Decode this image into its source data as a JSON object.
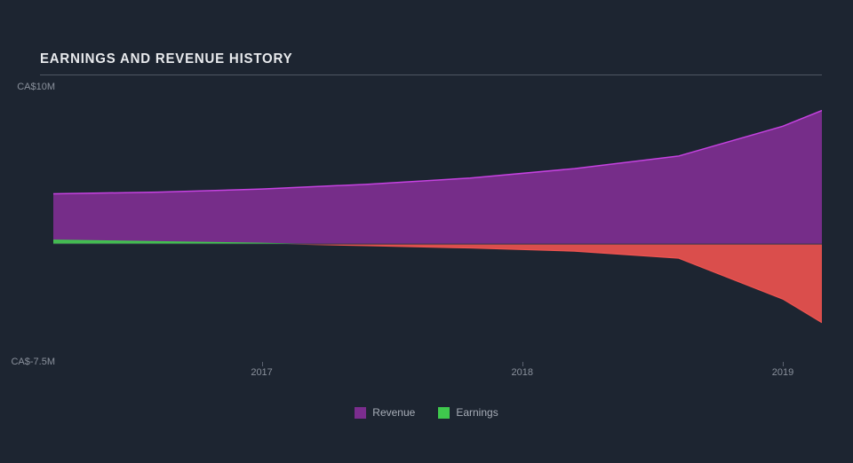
{
  "title": "EARNINGS AND REVENUE HISTORY",
  "chart": {
    "type": "area",
    "background_color": "#1d2531",
    "grid_color": "#5b6270",
    "axis_label_color": "#8a919c",
    "axis_label_fontsize": 11,
    "title_color": "#e8eaed",
    "title_fontsize": 15,
    "y_axis": {
      "min": -7.5,
      "max": 10,
      "ticks": [
        {
          "value": 10,
          "label": "CA$10M"
        },
        {
          "value": -7.5,
          "label": "CA$-7.5M"
        }
      ]
    },
    "x_axis": {
      "min": 2016.2,
      "max": 2019.15,
      "ticks": [
        {
          "value": 2017,
          "label": "2017"
        },
        {
          "value": 2018,
          "label": "2018"
        },
        {
          "value": 2019,
          "label": "2019"
        }
      ]
    },
    "baseline": 0,
    "series": [
      {
        "name": "Revenue",
        "color": "#7b2d8e",
        "stroke": "#c542e0",
        "x": [
          2016.2,
          2016.6,
          2017.0,
          2017.4,
          2017.8,
          2018.2,
          2018.6,
          2019.0,
          2019.15
        ],
        "y": [
          3.2,
          3.3,
          3.5,
          3.8,
          4.2,
          4.8,
          5.6,
          7.5,
          8.5
        ]
      },
      {
        "name": "Earnings",
        "color_pos": "#3fc94d",
        "color_neg": "#ef5350",
        "stroke_pos": "#3fc94d",
        "stroke_neg": "#ef5350",
        "x": [
          2016.2,
          2016.6,
          2017.0,
          2017.4,
          2017.8,
          2018.2,
          2018.6,
          2019.0,
          2019.15
        ],
        "y": [
          0.25,
          0.15,
          0.05,
          -0.1,
          -0.25,
          -0.45,
          -0.9,
          -3.5,
          -5.0
        ]
      }
    ],
    "legend": [
      {
        "label": "Revenue",
        "color": "#7b2d8e"
      },
      {
        "label": "Earnings",
        "color": "#3fc94d"
      }
    ],
    "legend_fontsize": 12,
    "legend_color": "#a7adb7"
  }
}
